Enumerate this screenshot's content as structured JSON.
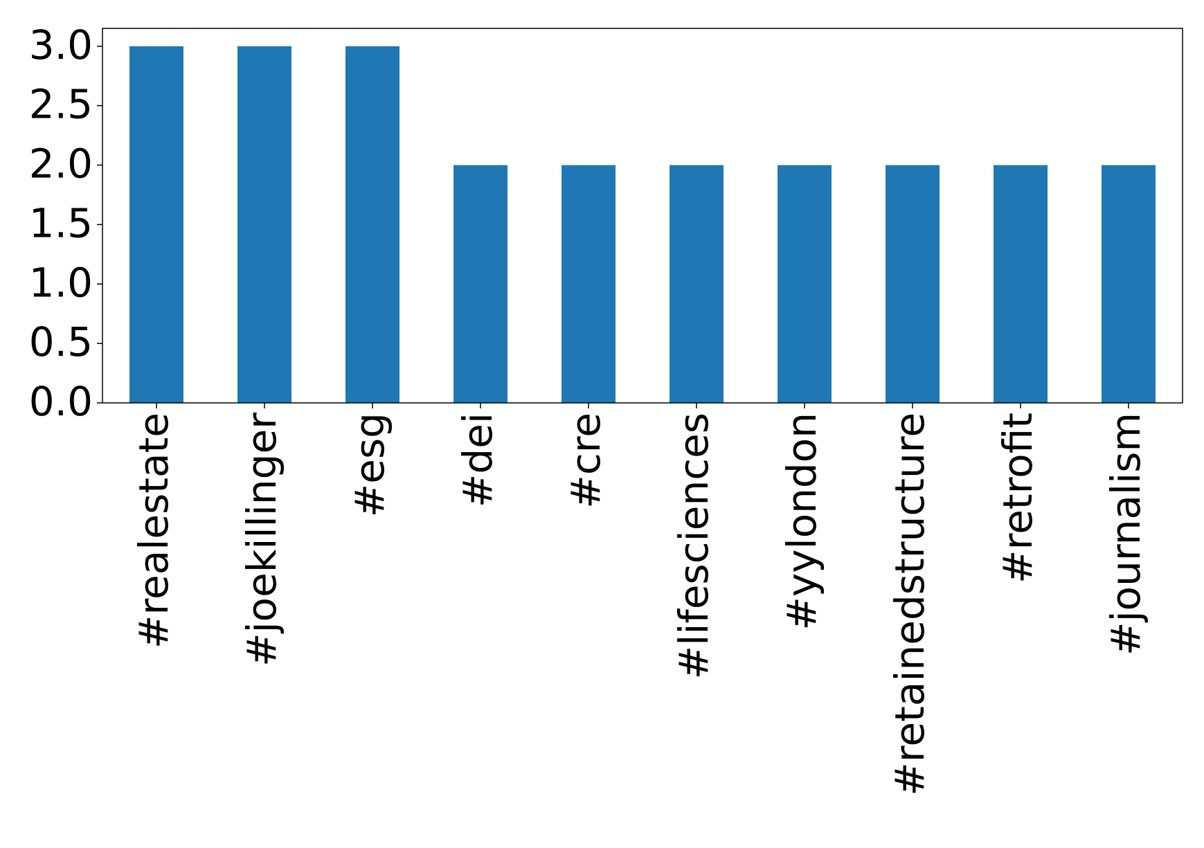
{
  "chart_data": {
    "type": "bar",
    "categories": [
      "#realestate",
      "#joekillinger",
      "#esg",
      "#dei",
      "#cre",
      "#lifesciences",
      "#yylondon",
      "#retainedstructure",
      "#retrofit",
      "#journalism"
    ],
    "values": [
      3,
      3,
      3,
      2,
      2,
      2,
      2,
      2,
      2,
      2
    ],
    "color": "#1f77b4",
    "ylim": [
      0,
      3.15
    ],
    "yticks": [
      {
        "value": 0,
        "label": "0.0"
      },
      {
        "value": 0.5,
        "label": "0.5"
      },
      {
        "value": 1,
        "label": "1.0"
      },
      {
        "value": 1.5,
        "label": "1.5"
      },
      {
        "value": 2,
        "label": "2.0"
      },
      {
        "value": 2.5,
        "label": "2.5"
      },
      {
        "value": 3,
        "label": "3.0"
      }
    ],
    "grid": false
  }
}
